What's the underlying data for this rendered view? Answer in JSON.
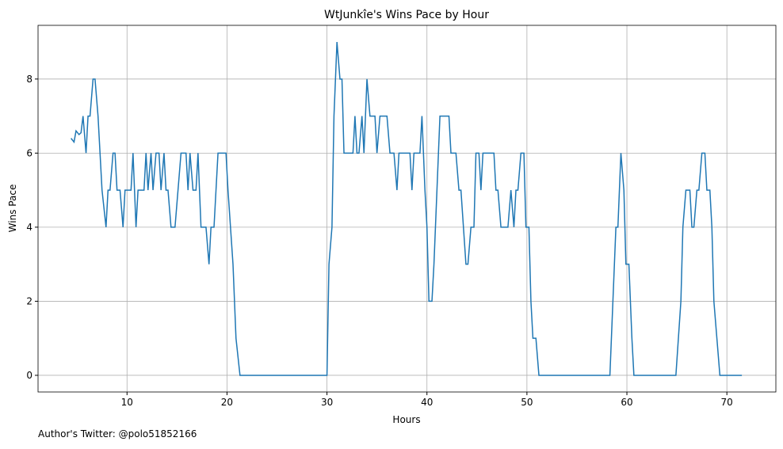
{
  "chart_data": {
    "type": "line",
    "title": "WtJunkîe's Wins Pace by Hour",
    "xlabel": "Hours",
    "ylabel": "Wins Pace",
    "annotation": "Author's Twitter: @polo51852166",
    "series": [
      {
        "name": "Wins Pace",
        "color": "#1f77b4",
        "x": [
          4.4,
          4.7,
          4.9,
          5.2,
          5.4,
          5.6,
          5.9,
          6.1,
          6.3,
          6.6,
          6.8,
          7.1,
          7.3,
          7.5,
          7.9,
          8.1,
          8.3,
          8.6,
          8.8,
          9.0,
          9.3,
          9.6,
          9.8,
          10.1,
          10.4,
          10.6,
          10.9,
          11.1,
          11.4,
          11.7,
          11.9,
          12.1,
          12.4,
          12.6,
          12.9,
          13.2,
          13.4,
          13.7,
          13.9,
          14.1,
          14.4,
          14.8,
          15.4,
          15.9,
          16.1,
          16.3,
          16.6,
          16.9,
          17.1,
          17.4,
          17.9,
          18.2,
          18.4,
          18.7,
          19.1,
          19.9,
          20.1,
          20.6,
          20.9,
          21.3,
          30.0,
          30.2,
          30.5,
          30.7,
          31.0,
          31.3,
          31.5,
          31.7,
          32.6,
          32.8,
          33.0,
          33.2,
          33.5,
          33.7,
          34.0,
          34.3,
          34.8,
          35.0,
          35.3,
          36.0,
          36.3,
          36.7,
          37.0,
          37.2,
          38.3,
          38.5,
          38.7,
          39.3,
          39.5,
          39.8,
          40.0,
          40.2,
          40.5,
          40.7,
          41.0,
          41.3,
          42.2,
          42.4,
          42.9,
          43.2,
          43.4,
          43.9,
          44.1,
          44.4,
          44.7,
          44.9,
          45.2,
          45.4,
          45.6,
          46.7,
          46.9,
          47.1,
          47.4,
          48.1,
          48.4,
          48.7,
          48.9,
          49.1,
          49.4,
          49.7,
          49.9,
          50.2,
          50.4,
          50.6,
          50.9,
          51.2,
          58.3,
          58.9,
          59.1,
          59.4,
          59.7,
          59.9,
          60.2,
          60.5,
          60.7,
          64.9,
          65.4,
          65.6,
          65.9,
          66.3,
          66.5,
          66.7,
          67.0,
          67.2,
          67.5,
          67.8,
          68.0,
          68.3,
          68.5,
          68.7,
          69.0,
          69.3,
          71.5
        ],
        "values": [
          6.4,
          6.3,
          6.6,
          6.5,
          6.55,
          7,
          6,
          7,
          7,
          8,
          8,
          7,
          6,
          5,
          4,
          5,
          5,
          6,
          6,
          5,
          5,
          4,
          5,
          5,
          5,
          6,
          4,
          5,
          5,
          5,
          6,
          5,
          6,
          5,
          6,
          6,
          5,
          6,
          5,
          5,
          4,
          4,
          6,
          6,
          5,
          6,
          5,
          5,
          6,
          4,
          4,
          3,
          4,
          4,
          6,
          6,
          5,
          3,
          1,
          0,
          0,
          3,
          4,
          7,
          9,
          8,
          8,
          6,
          6,
          7,
          6,
          6,
          7,
          6,
          8,
          7,
          7,
          6,
          7,
          7,
          6,
          6,
          5,
          6,
          6,
          5,
          6,
          6,
          7,
          5,
          4,
          2,
          2,
          3,
          5,
          7,
          7,
          6,
          6,
          5,
          5,
          3,
          3,
          4,
          4,
          6,
          6,
          5,
          6,
          6,
          5,
          5,
          4,
          4,
          5,
          4,
          5,
          5,
          6,
          6,
          4,
          4,
          2,
          1,
          1,
          0,
          0,
          4,
          4,
          6,
          5,
          3,
          3,
          1,
          0,
          0,
          2,
          4,
          5,
          5,
          4,
          4,
          5,
          5,
          6,
          6,
          5,
          5,
          4,
          2,
          1,
          0,
          0
        ]
      }
    ],
    "xlim": [
      1.1,
      74.9
    ],
    "ylim": [
      -0.45,
      9.45
    ],
    "xticks": [
      10,
      20,
      30,
      40,
      50,
      60,
      70
    ],
    "yticks": [
      0,
      2,
      4,
      6,
      8
    ],
    "grid": true
  }
}
